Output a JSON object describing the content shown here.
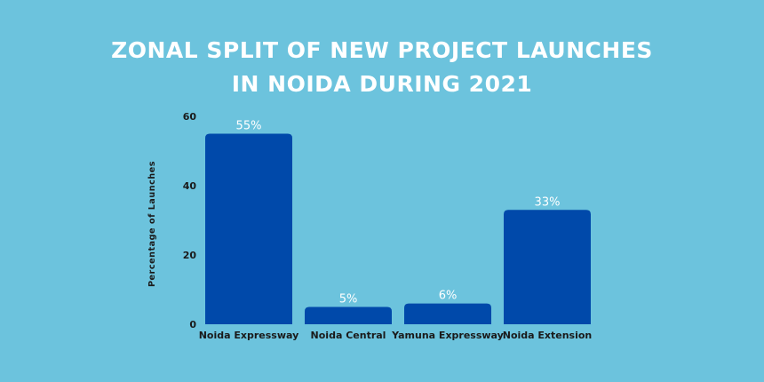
{
  "chart_data": {
    "type": "bar",
    "title_lines": [
      "ZONAL SPLIT OF NEW PROJECT LAUNCHES",
      "IN NOIDA DURING 2021"
    ],
    "xlabel": "",
    "ylabel": "Percentage of Launches",
    "categories": [
      "Noida Expressway",
      "Noida Central",
      "Yamuna Expressway",
      "Noida Extension"
    ],
    "values": [
      55,
      5,
      6,
      33
    ],
    "value_labels": [
      "55%",
      "5%",
      "6%",
      "33%"
    ],
    "ylim": [
      0,
      60
    ],
    "yticks": [
      0,
      20,
      40,
      60
    ],
    "grid": false,
    "legend": "none"
  },
  "colors": {
    "background": "#6cc3dd",
    "bar": "#0049aa",
    "title": "#ffffff",
    "value_label": "#ffffff",
    "axis_text": "#1a1a1a"
  }
}
